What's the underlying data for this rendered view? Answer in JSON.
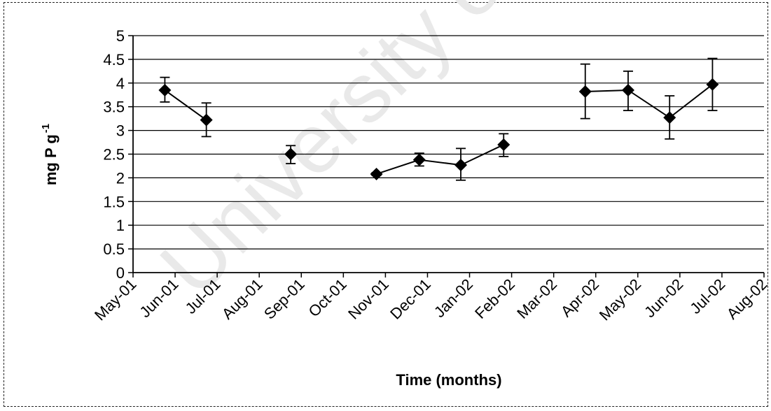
{
  "watermark": "University of Cape Town",
  "chart_data": {
    "type": "line",
    "title": "",
    "xlabel": "Time (months)",
    "ylabel": "mg P g",
    "ylabel_sup": "-1",
    "ylim": [
      0,
      5
    ],
    "yticks": [
      "0",
      "0.5",
      "1",
      "1.5",
      "2",
      "2.5",
      "3",
      "3.5",
      "4",
      "4.5",
      "5"
    ],
    "grid": true,
    "x_tick_labels": [
      "May-01",
      "Jun-01",
      "Jul-01",
      "Aug-01",
      "Sep-01",
      "Oct-01",
      "Nov-01",
      "Dec-01",
      "Jan-02",
      "Feb-02",
      "Mar-02",
      "Apr-02",
      "May-02",
      "Jun-02",
      "Jul-02",
      "Aug-02"
    ],
    "segments": [
      [
        {
          "x": "2001-05-24",
          "y": 3.85,
          "err_low": 3.6,
          "err_high": 4.12
        },
        {
          "x": "2001-06-23",
          "y": 3.22,
          "err_low": 2.87,
          "err_high": 3.58
        }
      ],
      [
        {
          "x": "2001-08-23",
          "y": 2.5,
          "err_low": 2.3,
          "err_high": 2.68
        }
      ],
      [
        {
          "x": "2001-10-24",
          "y": 2.08,
          "err_low": 2.05,
          "err_high": 2.11
        },
        {
          "x": "2001-11-24",
          "y": 2.38,
          "err_low": 2.25,
          "err_high": 2.52
        },
        {
          "x": "2001-12-24",
          "y": 2.27,
          "err_low": 1.95,
          "err_high": 2.62
        },
        {
          "x": "2002-01-24",
          "y": 2.7,
          "err_low": 2.45,
          "err_high": 2.93
        }
      ],
      [
        {
          "x": "2002-03-24",
          "y": 3.82,
          "err_low": 3.25,
          "err_high": 4.4
        },
        {
          "x": "2002-04-24",
          "y": 3.85,
          "err_low": 3.42,
          "err_high": 4.25
        },
        {
          "x": "2002-05-24",
          "y": 3.27,
          "err_low": 2.82,
          "err_high": 3.73
        },
        {
          "x": "2002-06-24",
          "y": 3.97,
          "err_low": 3.42,
          "err_high": 4.52
        }
      ]
    ]
  }
}
